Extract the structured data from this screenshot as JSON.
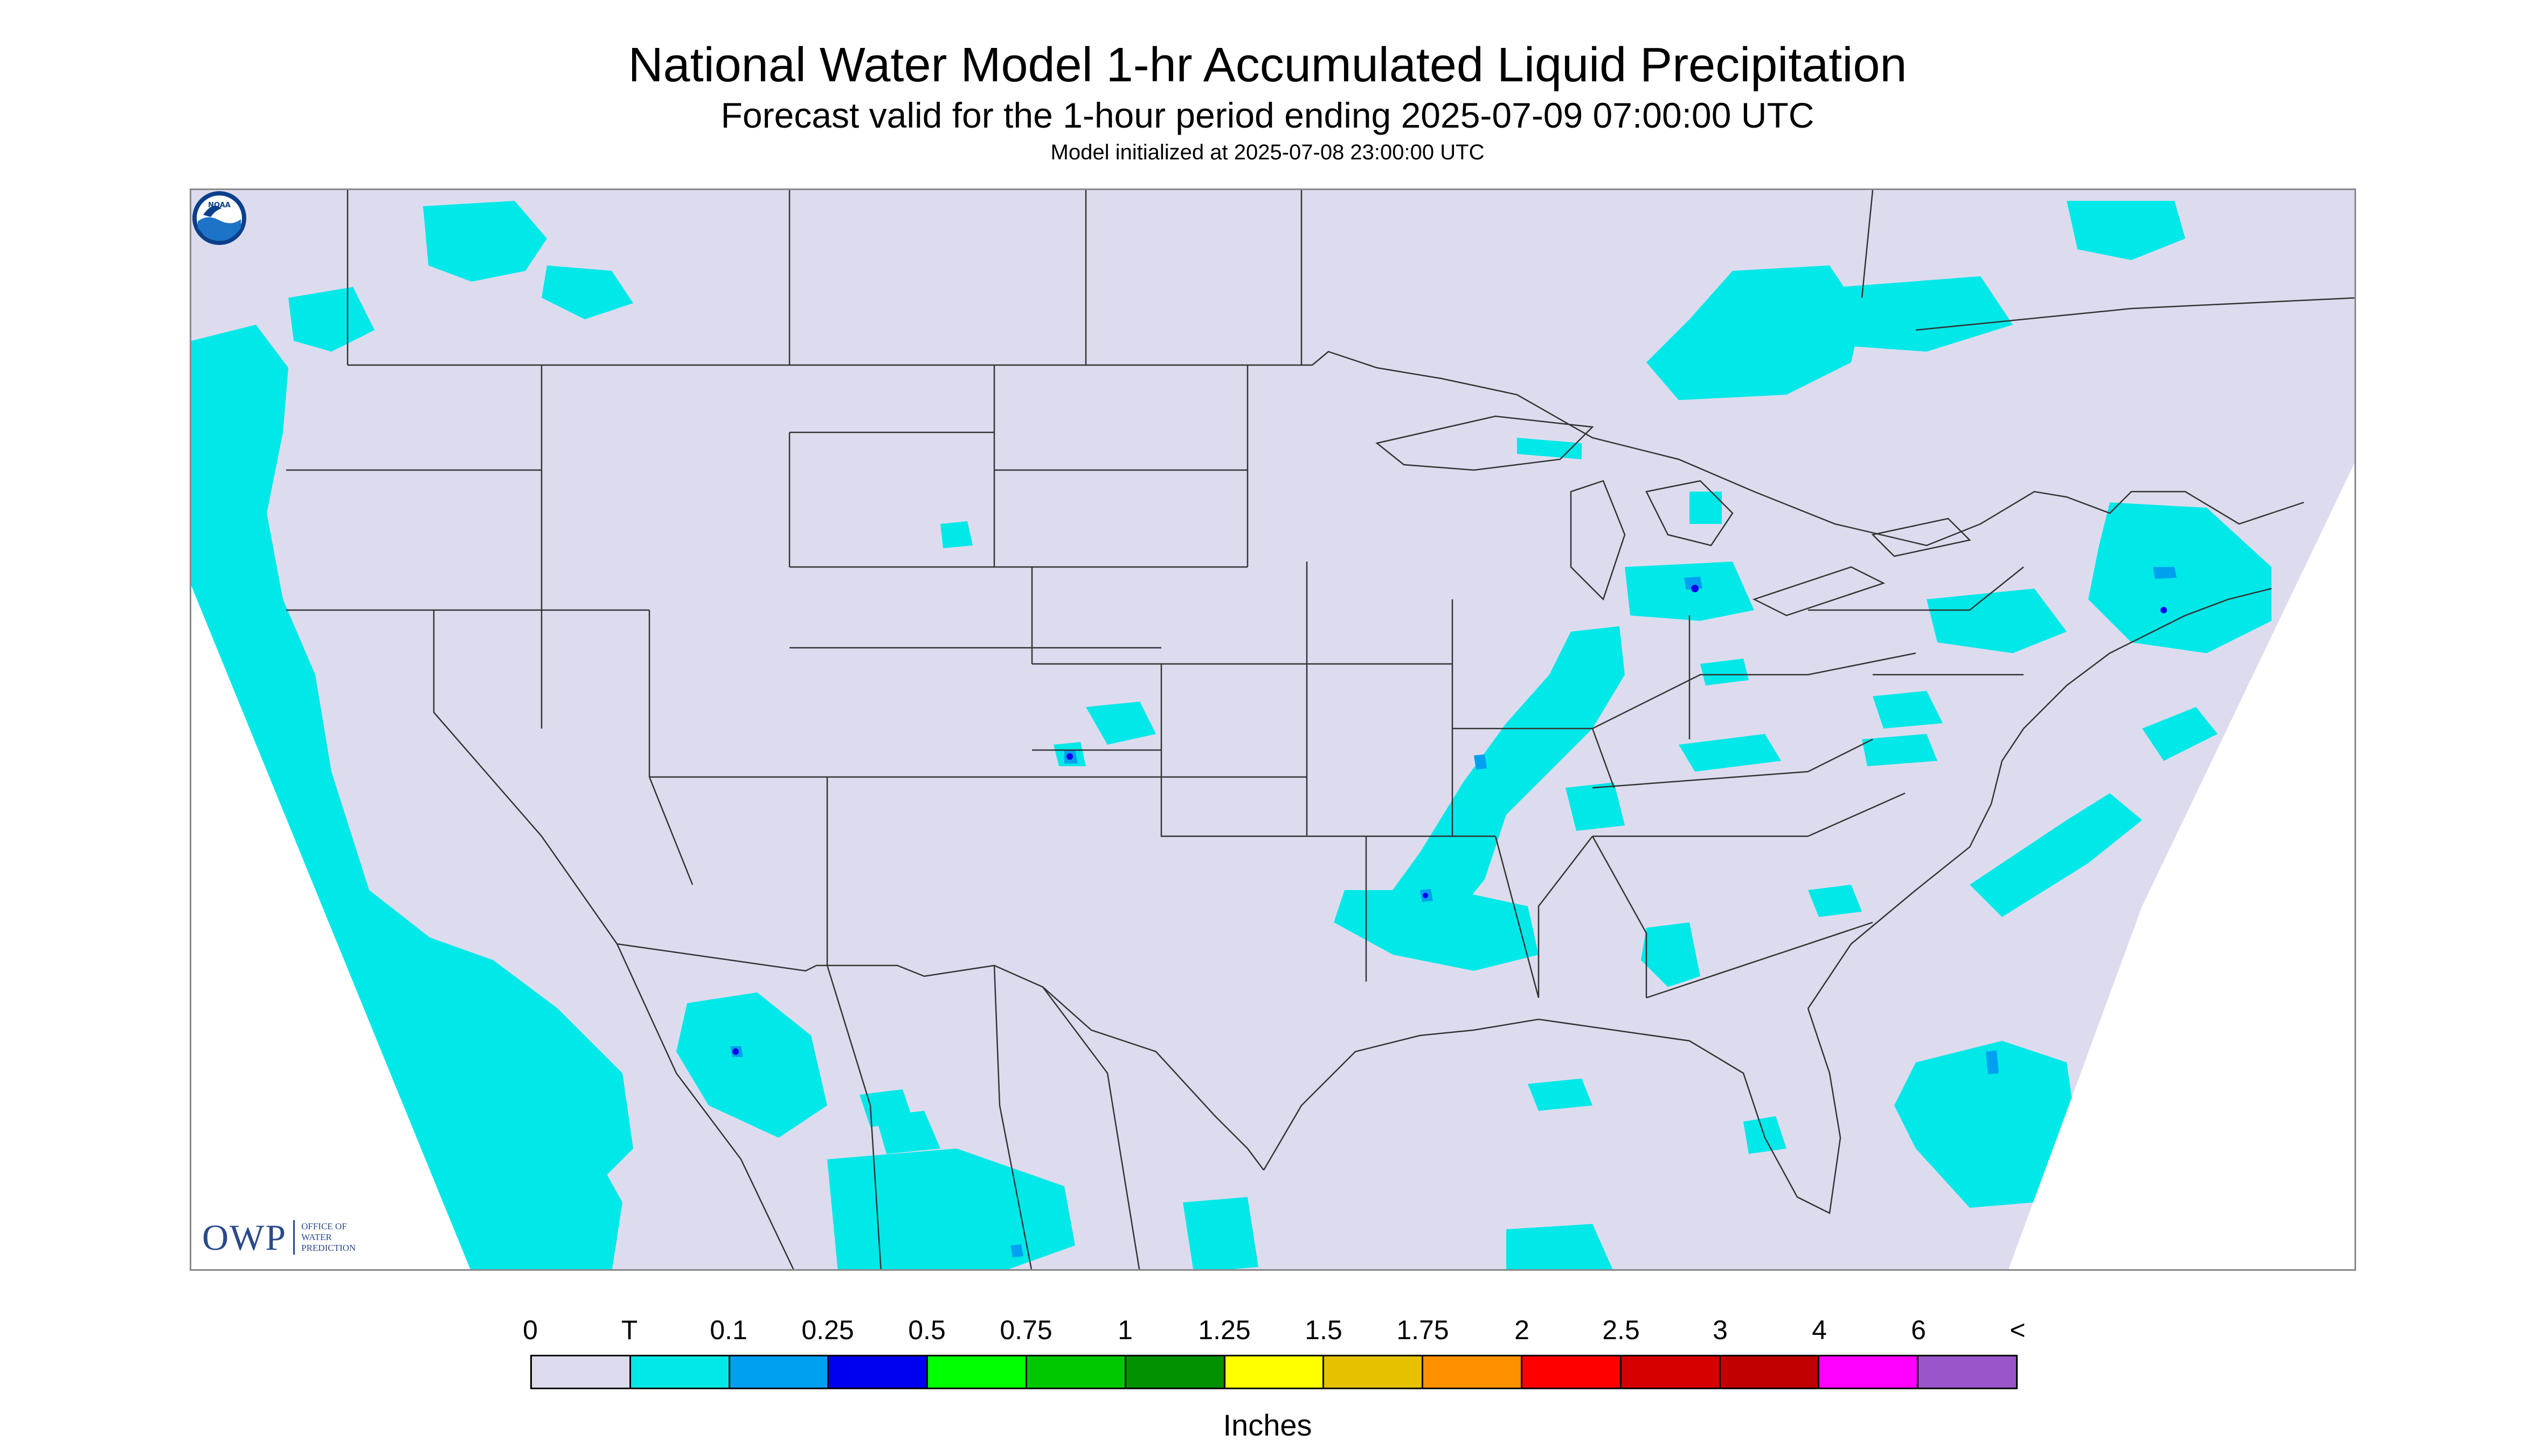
{
  "title": "National Water Model 1-hr Accumulated Liquid Precipitation",
  "subtitle": "Forecast valid for the 1-hour period ending 2025-07-09 07:00:00 UTC",
  "initialized": "Model initialized at 2025-07-08 23:00:00 UTC",
  "units": "Inches",
  "legend": {
    "labels": [
      "0",
      "T",
      "0.1",
      "0.25",
      "0.5",
      "0.75",
      "1",
      "1.25",
      "1.5",
      "1.75",
      "2",
      "2.5",
      "3",
      "4",
      "6",
      "<"
    ],
    "colors": [
      "#dcdcee",
      "#00e8e8",
      "#00a0f0",
      "#0000f0",
      "#00ff00",
      "#00c800",
      "#009000",
      "#ffff00",
      "#e7c000",
      "#ff9000",
      "#ff0000",
      "#d60000",
      "#c00000",
      "#ff00ff",
      "#9955c9"
    ]
  },
  "logos": {
    "owp_mark": "OWP",
    "owp_lines": [
      "OFFICE OF",
      "WATER",
      "PREDICTION"
    ],
    "noaa": "NOAA"
  },
  "colors": {
    "map_background": "#dcdcee",
    "outside_domain": "#ffffff",
    "trace_precip": "#00e8e8",
    "light_precip": "#00a0f0",
    "moderate_precip": "#0000f0",
    "boundary_line": "#333333"
  }
}
